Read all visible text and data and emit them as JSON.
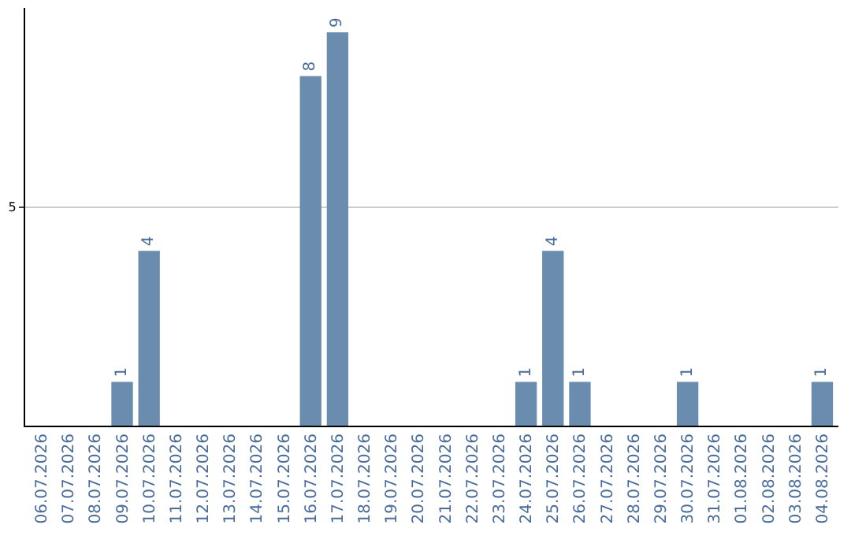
{
  "chart_data": {
    "type": "bar",
    "categories": [
      "06.07.2026",
      "07.07.2026",
      "08.07.2026",
      "09.07.2026",
      "10.07.2026",
      "11.07.2026",
      "12.07.2026",
      "13.07.2026",
      "14.07.2026",
      "15.07.2026",
      "16.07.2026",
      "17.07.2026",
      "18.07.2026",
      "19.07.2026",
      "20.07.2026",
      "21.07.2026",
      "22.07.2026",
      "23.07.2026",
      "24.07.2026",
      "25.07.2026",
      "26.07.2026",
      "27.07.2026",
      "28.07.2026",
      "29.07.2026",
      "30.07.2026",
      "31.07.2026",
      "01.08.2026",
      "02.08.2026",
      "03.08.2026",
      "04.08.2026"
    ],
    "values": [
      0,
      0,
      0,
      1,
      4,
      0,
      0,
      0,
      0,
      0,
      8,
      9,
      0,
      0,
      0,
      0,
      0,
      0,
      1,
      4,
      1,
      0,
      0,
      0,
      1,
      0,
      0,
      0,
      0,
      1
    ],
    "value_labels": [
      null,
      null,
      null,
      "1",
      "4",
      null,
      null,
      null,
      null,
      null,
      "8",
      "9",
      null,
      null,
      null,
      null,
      null,
      null,
      "1",
      "4",
      "1",
      null,
      null,
      null,
      "1",
      null,
      null,
      null,
      null,
      "1"
    ],
    "color": "#6a8caf",
    "ylim": [
      0,
      9.56
    ],
    "yticks": [
      5
    ],
    "grid": "y"
  }
}
